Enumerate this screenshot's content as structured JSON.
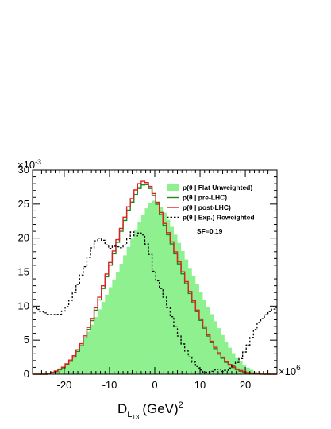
{
  "chart_data": {
    "type": "histogram",
    "xlabel_main": "D",
    "xlabel_sub": "L",
    "xlabel_subsub": "13",
    "xlabel_unit": "(GeV)",
    "xlabel_pow": "2",
    "x_multiplier_base": "×10",
    "x_multiplier_exp": "6",
    "y_multiplier_base": "×10",
    "y_multiplier_exp": "-3",
    "xlim": [
      -27,
      27
    ],
    "ylim": [
      0,
      30
    ],
    "x_ticks": [
      -20,
      -10,
      0,
      10,
      20
    ],
    "x_tick_labels": [
      "-20",
      "-10",
      "0",
      "10",
      "20"
    ],
    "y_ticks": [
      0,
      5,
      10,
      15,
      20,
      25,
      30
    ],
    "y_tick_labels": [
      "0",
      "5",
      "10",
      "15",
      "20",
      "25",
      "30"
    ],
    "annotation": "SF=0.19",
    "series": [
      {
        "name": "p(θ | Flat Unweighted)",
        "style": "fill",
        "color": "#8ef08e",
        "x": [
          -25,
          -22,
          -20,
          -18,
          -16,
          -14,
          -12,
          -10,
          -8,
          -6,
          -4,
          -2,
          -1,
          0,
          1,
          2,
          4,
          6,
          8,
          10,
          12,
          14,
          16,
          18,
          20,
          22,
          25
        ],
        "y": [
          0,
          0.4,
          1.2,
          2.4,
          4.5,
          7,
          9.8,
          12.5,
          15.3,
          18.4,
          21.5,
          24.2,
          25.1,
          25.6,
          25,
          24,
          21.4,
          18.4,
          15.3,
          12.3,
          9.6,
          7,
          4.5,
          2.5,
          1.2,
          0.4,
          0
        ]
      },
      {
        "name": "p(θ | pre-LHC)",
        "style": "line",
        "color": "#1a8a1a",
        "x": [
          -24,
          -22,
          -20,
          -18,
          -16,
          -14,
          -12,
          -10,
          -8,
          -6,
          -5,
          -4,
          -3,
          -2,
          -1,
          0,
          1,
          2,
          4,
          6,
          8,
          10,
          12,
          14,
          16,
          18,
          20,
          22,
          24
        ],
        "y": [
          0,
          0.3,
          1,
          2.3,
          4.4,
          7.5,
          11.3,
          15.6,
          19.8,
          23.8,
          25.3,
          26.7,
          27.7,
          28,
          27.3,
          26,
          24.3,
          22.2,
          18.8,
          15.1,
          11.5,
          8.2,
          5.3,
          3.1,
          1.6,
          0.7,
          0.2,
          0.05,
          0
        ]
      },
      {
        "name": "p(θ | post-LHC)",
        "style": "line",
        "color": "#e02020",
        "x": [
          -24,
          -22,
          -20,
          -18,
          -16,
          -14,
          -12,
          -10,
          -8,
          -6,
          -5,
          -4,
          -3,
          -2,
          -1,
          0,
          1,
          2,
          4,
          6,
          8,
          10,
          12,
          14,
          16,
          18,
          20,
          22,
          24
        ],
        "y": [
          0,
          0.4,
          1.1,
          2.5,
          4.7,
          7.8,
          11.7,
          16,
          20.2,
          24.3,
          25.8,
          27.4,
          28.4,
          28.3,
          27.6,
          26.3,
          24.6,
          22.5,
          19.1,
          15.4,
          11.8,
          8.4,
          5.5,
          3.3,
          1.7,
          0.8,
          0.3,
          0.1,
          0
        ]
      },
      {
        "name": "p(θ | Exp.) Reweighted",
        "style": "dashed",
        "color": "#000000",
        "x": [
          -27,
          -25,
          -23,
          -21,
          -20,
          -19,
          -18,
          -17,
          -16,
          -15,
          -14,
          -13,
          -12,
          -11,
          -10,
          -9,
          -8,
          -7,
          -6,
          -5,
          -4,
          -3,
          -2,
          -1,
          0,
          1,
          2,
          3,
          4,
          5,
          6,
          7,
          8,
          9,
          10,
          11,
          12,
          13,
          14,
          15,
          16,
          17,
          18,
          19,
          20,
          21,
          22,
          23,
          24,
          25,
          26,
          27
        ],
        "y": [
          10,
          9.2,
          8.7,
          8.8,
          9.4,
          10.3,
          11.7,
          13.2,
          14.9,
          16.4,
          18.3,
          19.6,
          20.1,
          19.4,
          18.4,
          18.8,
          18.7,
          18.5,
          19.7,
          20.9,
          20.2,
          21.1,
          19.5,
          17.6,
          14.5,
          13.2,
          11.7,
          9.8,
          8.1,
          6.2,
          4.7,
          3.4,
          2.3,
          1.4,
          0.7,
          0.3,
          0.3,
          0.5,
          0.8,
          0.4,
          0.6,
          1.1,
          1.6,
          2.3,
          3.5,
          4.8,
          6.3,
          7.6,
          8.3,
          9,
          9.5,
          9.8
        ]
      }
    ]
  }
}
